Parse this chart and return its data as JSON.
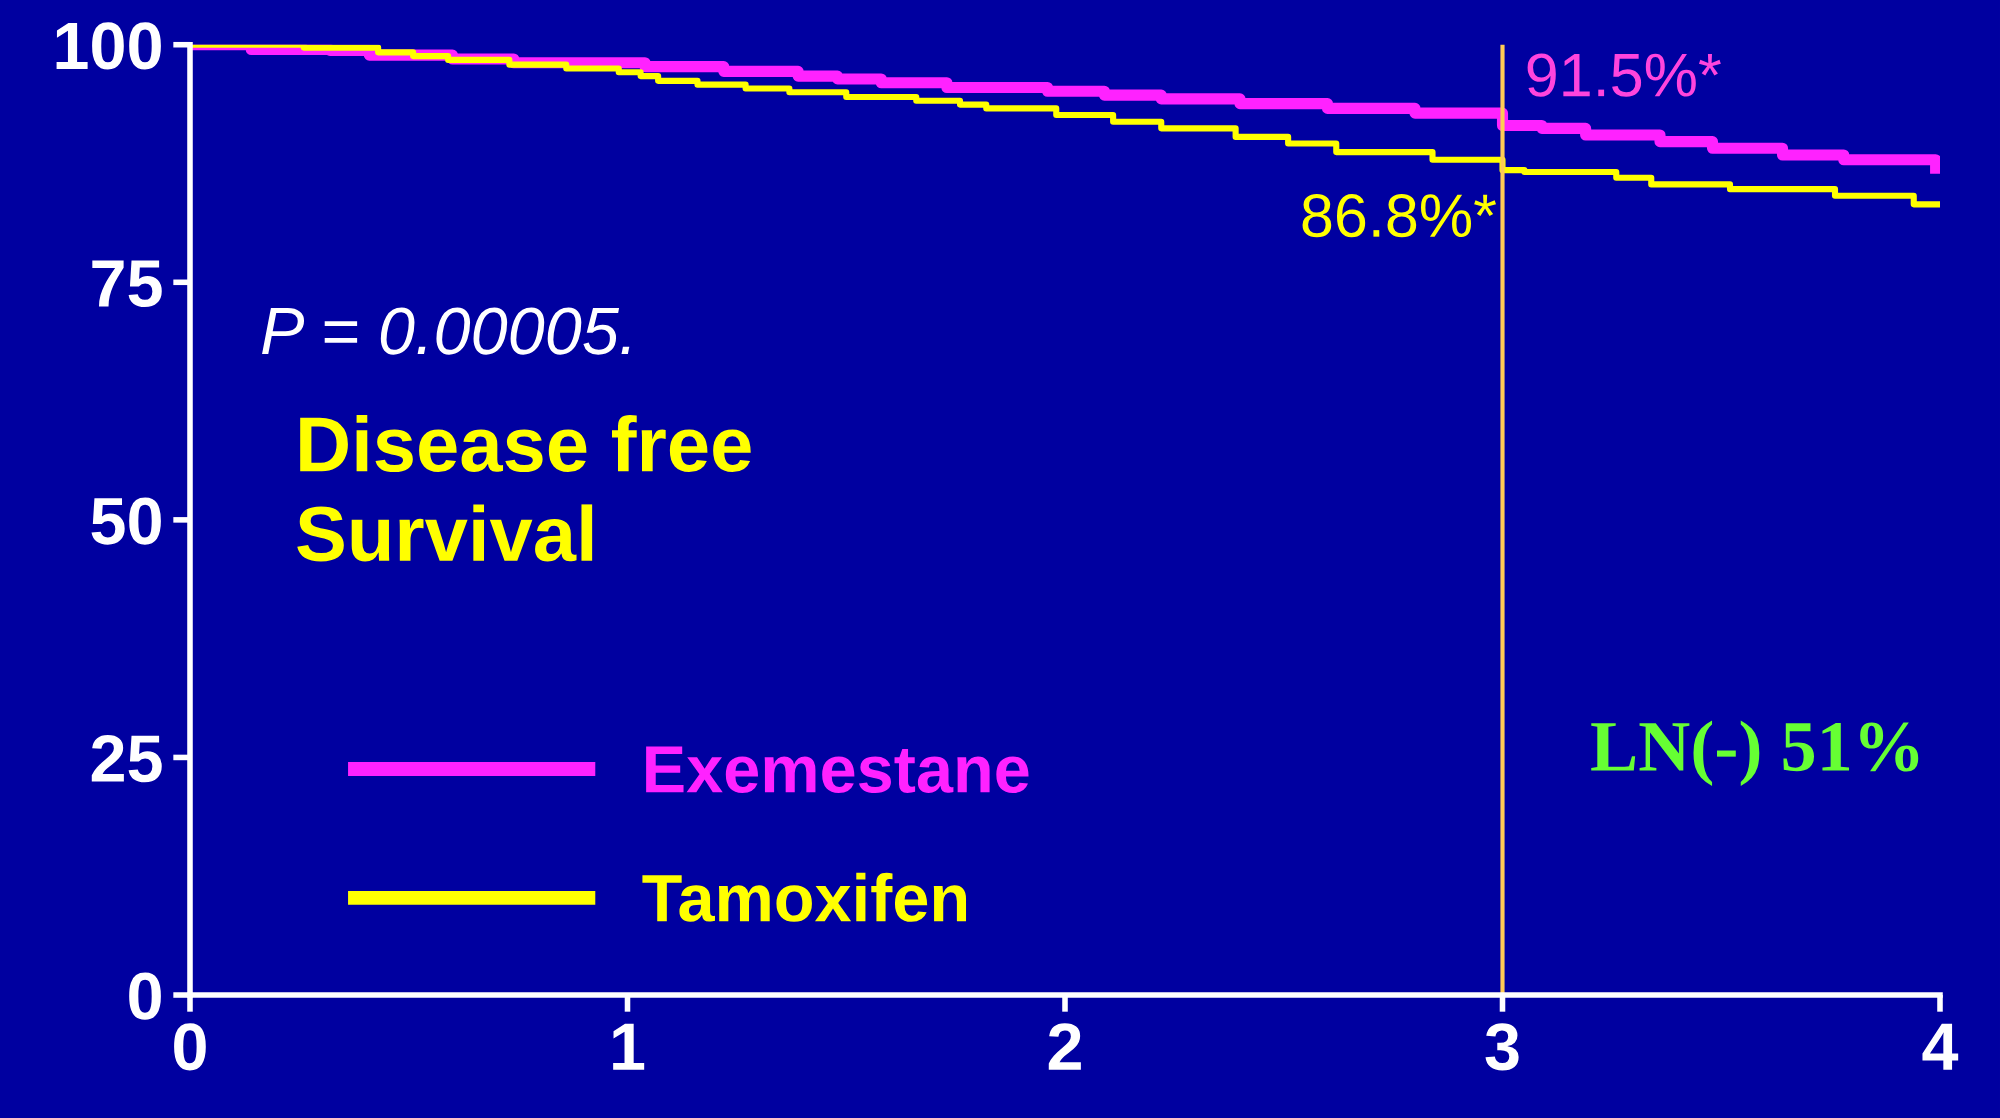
{
  "chart_data": {
    "type": "step",
    "series": [
      {
        "name": "Exemestane",
        "color": "#ff22ff",
        "x": [
          0,
          0.14,
          0.32,
          0.41,
          0.6,
          0.74,
          1.04,
          1.22,
          1.39,
          1.48,
          1.58,
          1.73,
          1.96,
          2.09,
          2.22,
          2.4,
          2.6,
          2.8,
          3.0,
          3.09,
          3.19,
          3.36,
          3.48,
          3.64,
          3.78,
          3.99
        ],
        "values": [
          100,
          99.5,
          99.4,
          98.9,
          98.5,
          98.1,
          97.7,
          97.2,
          96.7,
          96.4,
          96.0,
          95.5,
          95.1,
          94.7,
          94.3,
          93.8,
          93.3,
          92.8,
          91.5,
          91.2,
          90.5,
          89.8,
          89.1,
          88.4,
          87.9,
          87.0
        ]
      },
      {
        "name": "Tamoxifen",
        "color": "#ffff00",
        "x": [
          0,
          0.12,
          0.26,
          0.43,
          0.51,
          0.59,
          0.73,
          0.86,
          0.98,
          1.03,
          1.07,
          1.16,
          1.27,
          1.37,
          1.5,
          1.66,
          1.76,
          1.82,
          1.98,
          2.11,
          2.22,
          2.39,
          2.51,
          2.62,
          2.84,
          3.0,
          3.05,
          3.26,
          3.34,
          3.52,
          3.76,
          3.94,
          4.0
        ],
        "values": [
          100,
          100,
          99.7,
          99.2,
          98.8,
          98.4,
          97.9,
          97.5,
          97.1,
          96.7,
          96.2,
          95.8,
          95.4,
          95.0,
          94.5,
          94.1,
          93.7,
          93.3,
          92.6,
          91.9,
          91.2,
          90.3,
          89.6,
          88.7,
          87.9,
          86.8,
          86.6,
          86.0,
          85.3,
          84.8,
          84.1,
          83.2,
          83.2
        ]
      }
    ],
    "xlim": [
      0,
      4
    ],
    "xticks": [
      0,
      1,
      2,
      3,
      4
    ],
    "ylim": [
      0,
      100
    ],
    "yticks": [
      0,
      25,
      50,
      75,
      100
    ],
    "ref_lines": [
      {
        "axis": "x",
        "value": 3,
        "color": "#ffcc55"
      }
    ],
    "annotations": [
      {
        "text": "91.5%*",
        "x": 3,
        "y": 91.5
      },
      {
        "text": "86.8%*",
        "x": 3,
        "y": 86.8
      },
      "P = 0.00005.",
      "Disease free\nSurvival",
      "LN(-) 51%"
    ],
    "legend": "bottom left",
    "grid": false
  }
}
